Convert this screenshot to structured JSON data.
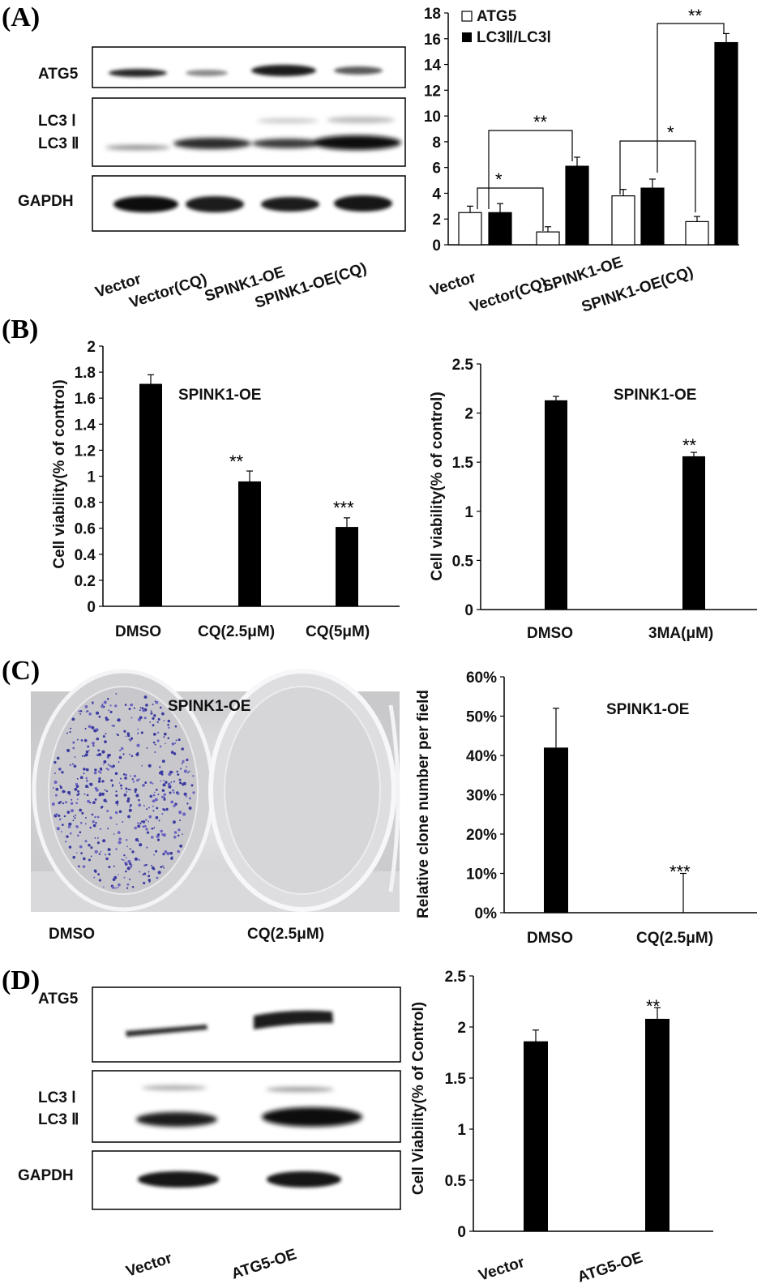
{
  "panels": {
    "a": "(A)",
    "b": "(B)",
    "c": "(C)",
    "d": "(D)"
  },
  "blot_a": {
    "rows": {
      "atg5": "ATG5",
      "lc3i": "LC3 Ⅰ",
      "lc3ii": "LC3 Ⅱ",
      "gapdh": "GAPDH"
    },
    "lanes": [
      "Vector",
      "Vector(CQ)",
      "SPINK1-OE",
      "SPINK1-OE(CQ)"
    ]
  },
  "plate_c": {
    "title": "SPINK1-OE",
    "labels": [
      "DMSO",
      "CQ(2.5μM)"
    ]
  },
  "blot_d": {
    "rows": {
      "atg5": "ATG5",
      "lc3i": "LC3 Ⅰ",
      "lc3ii": "LC3 Ⅱ",
      "gapdh": "GAPDH"
    },
    "lanes": [
      "Vector",
      "ATG5-OE"
    ]
  },
  "chart_data": [
    {
      "id": "A",
      "type": "bar",
      "categories": [
        "Vector",
        "Vector(CQ)",
        "SPINK1-OE",
        "SPINK1-OE(CQ)"
      ],
      "series": [
        {
          "name": "ATG5",
          "values": [
            2.5,
            1.0,
            3.8,
            1.8
          ],
          "errors": [
            0.5,
            0.4,
            0.5,
            0.4
          ],
          "color": "#ffffff"
        },
        {
          "name": "LC3Ⅱ/LC3Ⅰ",
          "values": [
            2.5,
            6.1,
            4.4,
            15.7
          ],
          "errors": [
            0.7,
            0.7,
            0.7,
            0.7
          ],
          "color": "#000000"
        }
      ],
      "yticks": [
        "0",
        "2",
        "4",
        "6",
        "8",
        "10",
        "12",
        "14",
        "16",
        "18"
      ],
      "ylim": [
        0,
        18
      ],
      "legend": [
        "ATG5",
        "LC3Ⅱ/LC3Ⅰ"
      ],
      "significance": [
        "*",
        "**",
        "*",
        "**"
      ]
    },
    {
      "id": "B1",
      "type": "bar",
      "title": "SPINK1-OE",
      "ylabel": "Cell viability(% of control)",
      "categories": [
        "DMSO",
        "CQ(2.5μM)",
        "CQ(5μM)"
      ],
      "values": [
        1.71,
        0.96,
        0.61
      ],
      "errors": [
        0.07,
        0.08,
        0.07
      ],
      "annotations": [
        "",
        "**",
        "***"
      ],
      "yticks": [
        "0",
        "0.2",
        "0.4",
        "0.6",
        "0.8",
        "1",
        "1.2",
        "1.4",
        "1.6",
        "1.8",
        "2"
      ],
      "ylim": [
        0,
        2
      ]
    },
    {
      "id": "B2",
      "type": "bar",
      "title": "SPINK1-OE",
      "ylabel": "Cell viability(% of control)",
      "categories": [
        "DMSO",
        "3MA(μM)"
      ],
      "values": [
        2.13,
        1.56
      ],
      "errors": [
        0.04,
        0.04
      ],
      "annotations": [
        "",
        "**"
      ],
      "yticks": [
        "0",
        "0.5",
        "1",
        "1.5",
        "2",
        "2.5"
      ],
      "ylim": [
        0,
        2.5
      ]
    },
    {
      "id": "C",
      "type": "bar",
      "title": "SPINK1-OE",
      "ylabel": "Relative clone number per field",
      "categories": [
        "DMSO",
        "CQ(2.5μM)"
      ],
      "values": [
        42,
        0
      ],
      "errors": [
        10,
        10
      ],
      "annotations": [
        "",
        "***"
      ],
      "yticks": [
        "0%",
        "10%",
        "20%",
        "30%",
        "40%",
        "50%",
        "60%"
      ],
      "ylim": [
        0,
        60
      ]
    },
    {
      "id": "D",
      "type": "bar",
      "ylabel": "Cell Viability(% of Control)",
      "categories": [
        "Vector",
        "ATG5-OE"
      ],
      "values": [
        1.86,
        2.08
      ],
      "errors": [
        0.11,
        0.11
      ],
      "annotations": [
        "",
        "**"
      ],
      "yticks": [
        "0",
        "0.5",
        "1",
        "1.5",
        "2",
        "2.5"
      ],
      "ylim": [
        0,
        2.5
      ]
    }
  ]
}
